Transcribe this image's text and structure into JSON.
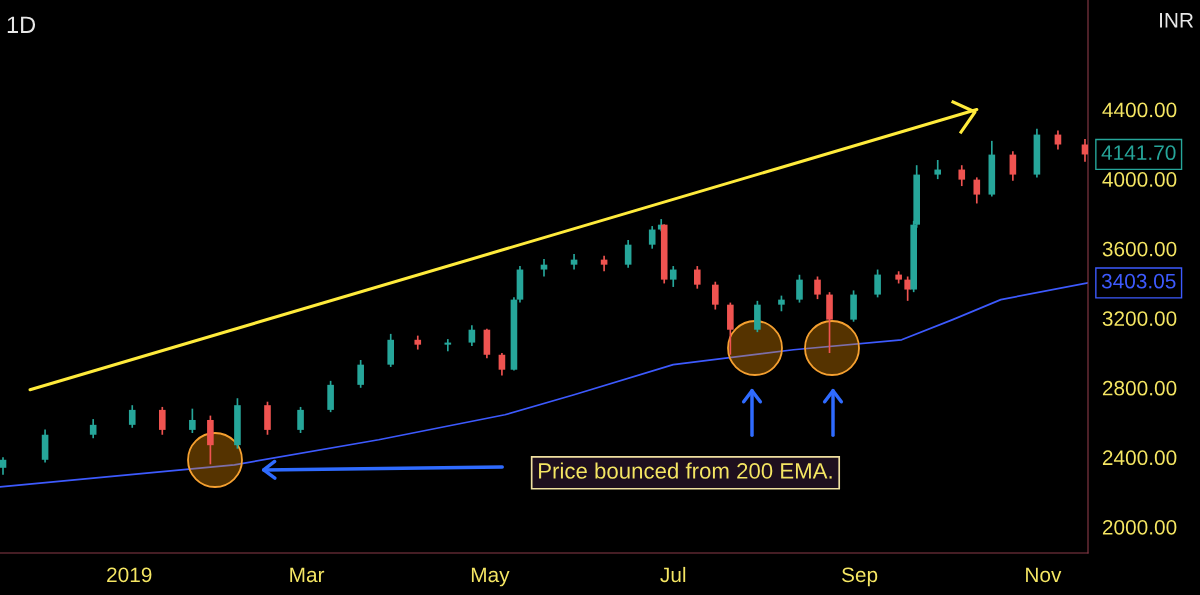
{
  "chart_data": {
    "type": "candlestick",
    "title": "1D",
    "ylabel": "INR",
    "x": [
      "2018-11-20",
      "2018-12-04",
      "2018-12-20",
      "2019-01-02",
      "2019-01-12",
      "2019-01-22",
      "2019-01-28",
      "2019-02-06",
      "2019-02-16",
      "2019-02-27",
      "2019-03-09",
      "2019-03-19",
      "2019-03-29",
      "2019-04-07",
      "2019-04-17",
      "2019-04-25",
      "2019-04-30",
      "2019-05-05",
      "2019-05-09",
      "2019-05-11",
      "2019-05-19",
      "2019-05-29",
      "2019-06-08",
      "2019-06-16",
      "2019-06-24",
      "2019-06-27",
      "2019-06-28",
      "2019-07-01",
      "2019-07-09",
      "2019-07-15",
      "2019-07-20",
      "2019-07-29",
      "2019-08-06",
      "2019-08-12",
      "2019-08-18",
      "2019-08-22",
      "2019-08-30",
      "2019-09-07",
      "2019-09-14",
      "2019-09-17",
      "2019-09-19",
      "2019-09-20",
      "2019-09-27",
      "2019-10-05",
      "2019-10-10",
      "2019-10-15",
      "2019-10-22",
      "2019-10-30",
      "2019-11-06",
      "2019-11-15"
    ],
    "ohlc": [
      [
        2340,
        2400,
        2300,
        2386
      ],
      [
        2386,
        2560,
        2370,
        2530
      ],
      [
        2530,
        2620,
        2510,
        2587
      ],
      [
        2587,
        2700,
        2570,
        2673
      ],
      [
        2673,
        2690,
        2530,
        2558
      ],
      [
        2558,
        2680,
        2540,
        2615
      ],
      [
        2615,
        2640,
        2360,
        2470
      ],
      [
        2470,
        2740,
        2450,
        2700
      ],
      [
        2700,
        2720,
        2530,
        2558
      ],
      [
        2558,
        2690,
        2540,
        2673
      ],
      [
        2673,
        2840,
        2660,
        2817
      ],
      [
        2817,
        2960,
        2800,
        2933
      ],
      [
        2933,
        3110,
        2920,
        3076
      ],
      [
        3076,
        3100,
        3020,
        3048
      ],
      [
        3048,
        3080,
        3010,
        3060
      ],
      [
        3060,
        3160,
        3040,
        3134
      ],
      [
        3134,
        3140,
        2970,
        2990
      ],
      [
        2990,
        3000,
        2870,
        2904
      ],
      [
        2904,
        3320,
        2900,
        3307
      ],
      [
        3307,
        3500,
        3290,
        3480
      ],
      [
        3480,
        3540,
        3440,
        3508
      ],
      [
        3508,
        3570,
        3480,
        3537
      ],
      [
        3537,
        3560,
        3470,
        3508
      ],
      [
        3508,
        3650,
        3490,
        3623
      ],
      [
        3623,
        3730,
        3600,
        3710
      ],
      [
        3710,
        3770,
        3700,
        3738
      ],
      [
        3738,
        3740,
        3400,
        3422
      ],
      [
        3422,
        3500,
        3380,
        3480
      ],
      [
        3480,
        3500,
        3370,
        3393
      ],
      [
        3393,
        3410,
        3250,
        3278
      ],
      [
        3278,
        3290,
        2990,
        3134
      ],
      [
        3134,
        3300,
        3120,
        3278
      ],
      [
        3278,
        3330,
        3240,
        3307
      ],
      [
        3307,
        3450,
        3290,
        3422
      ],
      [
        3422,
        3440,
        3310,
        3336
      ],
      [
        3336,
        3350,
        3000,
        3192
      ],
      [
        3192,
        3360,
        3180,
        3336
      ],
      [
        3336,
        3480,
        3320,
        3451
      ],
      [
        3451,
        3470,
        3400,
        3422
      ],
      [
        3422,
        3440,
        3300,
        3365
      ],
      [
        3365,
        3760,
        3350,
        3738
      ],
      [
        3738,
        4080,
        3720,
        4026
      ],
      [
        4026,
        4110,
        4000,
        4055
      ],
      [
        4055,
        4080,
        3960,
        3997
      ],
      [
        3997,
        4010,
        3860,
        3911
      ],
      [
        3911,
        4220,
        3900,
        4141
      ],
      [
        4141,
        4160,
        3990,
        4026
      ],
      [
        4026,
        4290,
        4010,
        4256
      ],
      [
        4256,
        4280,
        4170,
        4199
      ],
      [
        4199,
        4230,
        4100,
        4141.7
      ]
    ],
    "colors": [
      "#26a69a",
      "#26a69a",
      "#26a69a",
      "#26a69a",
      "#ef5350",
      "#26a69a",
      "#ef5350",
      "#26a69a",
      "#ef5350",
      "#26a69a",
      "#26a69a",
      "#26a69a",
      "#26a69a",
      "#ef5350",
      "#26a69a",
      "#26a69a",
      "#ef5350",
      "#ef5350",
      "#26a69a",
      "#26a69a",
      "#26a69a",
      "#26a69a",
      "#ef5350",
      "#26a69a",
      "#26a69a",
      "#26a69a",
      "#ef5350",
      "#26a69a",
      "#ef5350",
      "#ef5350",
      "#ef5350",
      "#26a69a",
      "#26a69a",
      "#26a69a",
      "#ef5350",
      "#ef5350",
      "#26a69a",
      "#26a69a",
      "#ef5350",
      "#ef5350",
      "#26a69a",
      "#26a69a",
      "#26a69a",
      "#ef5350",
      "#ef5350",
      "#26a69a",
      "#ef5350",
      "#26a69a",
      "#ef5350",
      "#ef5350"
    ],
    "series": [
      {
        "type": "line",
        "color": "#3d5afe",
        "x": [
          "2018-11-19",
          "2019-02-05",
          "2019-03-25",
          "2019-05-06",
          "2019-05-29",
          "2019-07-01",
          "2019-08-10",
          "2019-09-15",
          "2019-10-02",
          "2019-10-18",
          "2019-11-16"
        ],
        "values": [
          2230,
          2357,
          2501,
          2645,
          2760,
          2933,
          3019,
          3076,
          3192,
          3307,
          3403.05
        ]
      },
      {
        "type": "line",
        "color": "#ffeb3b",
        "x": [
          "2018-11-29",
          "2019-10-10"
        ],
        "values": [
          2789,
          4400
        ]
      }
    ],
    "annotations": [
      "Price bounced from 200 EMA.",
      {
        "text": "4141.70",
        "x": "2019-11-15",
        "y": 4141.7
      },
      {
        "text": "3403.05",
        "x": "2019-11-16",
        "y": 3403.05
      }
    ],
    "xlim": [
      "2018-11-19",
      "2019-11-16"
    ],
    "xticks": [
      {
        "value": "2019-01-01",
        "label": "2019"
      },
      {
        "value": "2019-03-01",
        "label": "Mar"
      },
      {
        "value": "2019-05-01",
        "label": "May"
      },
      {
        "value": "2019-07-01",
        "label": "Jul"
      },
      {
        "value": "2019-09-01",
        "label": "Sep"
      },
      {
        "value": "2019-11-01",
        "label": "Nov"
      }
    ],
    "ylim": [
      1850,
      5030
    ],
    "yticks": [
      {
        "value": 2000,
        "label": "2000.00"
      },
      {
        "value": 2400,
        "label": "2400.00"
      },
      {
        "value": 2800,
        "label": "2800.00"
      },
      {
        "value": 3200,
        "label": "3200.00"
      },
      {
        "value": 3600,
        "label": "3600.00"
      },
      {
        "value": 4000,
        "label": "4000.00"
      },
      {
        "value": 4400,
        "label": "4400.00"
      }
    ],
    "grid": false,
    "legend": false
  }
}
